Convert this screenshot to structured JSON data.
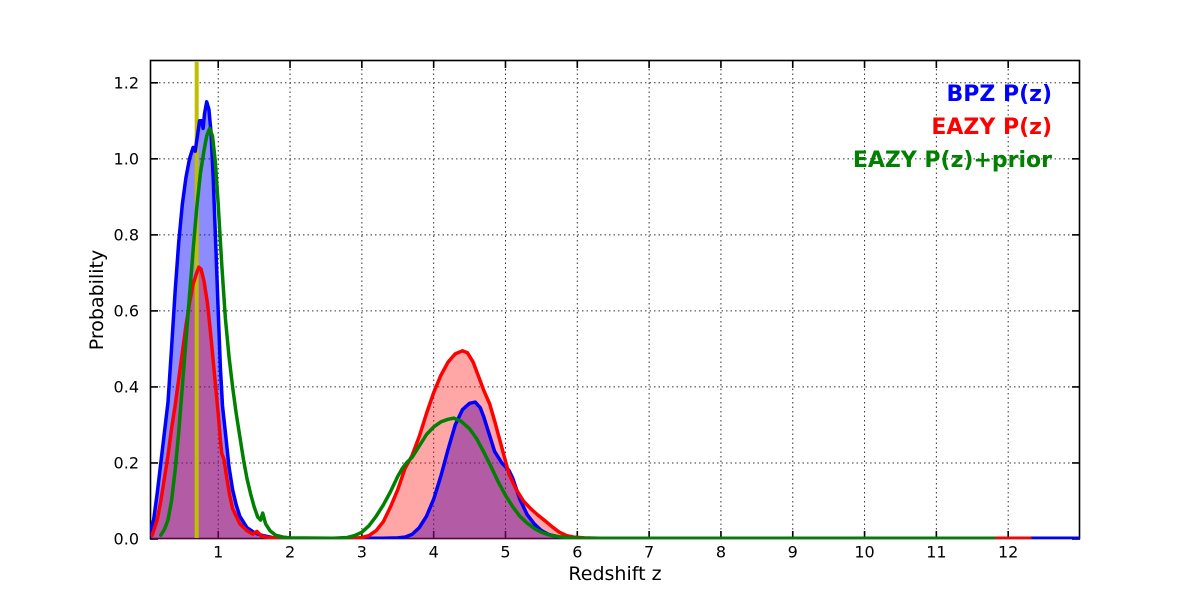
{
  "figure": {
    "background": "#ffffff",
    "frame_color": "#000000",
    "grid_color": "#333333"
  },
  "legend": {
    "items": [
      {
        "label": "BPZ P(z)",
        "color": "#0000ff"
      },
      {
        "label": "EAZY P(z)",
        "color": "#ff0000"
      },
      {
        "label": "EAZY P(z)+prior",
        "color": "#008000"
      }
    ]
  },
  "chart_data": {
    "type": "line",
    "title": "",
    "xlabel": "Redshift z",
    "ylabel": "Probability",
    "xlim": [
      0.05,
      13.0
    ],
    "ylim": [
      0,
      1.26
    ],
    "xticks": [
      1,
      2,
      3,
      4,
      5,
      6,
      7,
      8,
      9,
      10,
      11,
      12
    ],
    "yticks": [
      0.0,
      0.2,
      0.4,
      0.6,
      0.8,
      1.0,
      1.2
    ],
    "grid": true,
    "grid_style": "dotted",
    "legend_position": "upper right",
    "vline": {
      "x": 0.7,
      "color": "#bfbf00",
      "width": 4
    },
    "series": [
      {
        "name": "BPZ P(z)",
        "id": "bpz",
        "color": "#0000ff",
        "fill": "rgba(0,0,255,0.45)",
        "line_width": 3.5,
        "points": [
          [
            0.05,
            0.02
          ],
          [
            0.1,
            0.05
          ],
          [
            0.15,
            0.12
          ],
          [
            0.2,
            0.2
          ],
          [
            0.25,
            0.28
          ],
          [
            0.3,
            0.36
          ],
          [
            0.35,
            0.5
          ],
          [
            0.4,
            0.65
          ],
          [
            0.45,
            0.78
          ],
          [
            0.5,
            0.88
          ],
          [
            0.55,
            0.95
          ],
          [
            0.6,
            1.0
          ],
          [
            0.65,
            1.03
          ],
          [
            0.68,
            1.02
          ],
          [
            0.71,
            1.06
          ],
          [
            0.74,
            1.1
          ],
          [
            0.77,
            1.1
          ],
          [
            0.79,
            1.08
          ],
          [
            0.81,
            1.12
          ],
          [
            0.84,
            1.15
          ],
          [
            0.87,
            1.13
          ],
          [
            0.9,
            1.07
          ],
          [
            0.93,
            0.95
          ],
          [
            0.97,
            0.75
          ],
          [
            1.0,
            0.6
          ],
          [
            1.03,
            0.45
          ],
          [
            1.06,
            0.35
          ],
          [
            1.1,
            0.28
          ],
          [
            1.15,
            0.19
          ],
          [
            1.2,
            0.13
          ],
          [
            1.25,
            0.09
          ],
          [
            1.3,
            0.06
          ],
          [
            1.4,
            0.03
          ],
          [
            1.5,
            0.017
          ],
          [
            1.6,
            0.01
          ],
          [
            1.75,
            0.004
          ],
          [
            1.9,
            0.002
          ],
          [
            2.5,
            0.002
          ],
          [
            3.3,
            0.002
          ],
          [
            3.5,
            0.003
          ],
          [
            3.6,
            0.005
          ],
          [
            3.7,
            0.012
          ],
          [
            3.8,
            0.03
          ],
          [
            3.9,
            0.06
          ],
          [
            4.0,
            0.105
          ],
          [
            4.1,
            0.165
          ],
          [
            4.2,
            0.235
          ],
          [
            4.3,
            0.3
          ],
          [
            4.4,
            0.34
          ],
          [
            4.5,
            0.357
          ],
          [
            4.58,
            0.36
          ],
          [
            4.65,
            0.345
          ],
          [
            4.7,
            0.32
          ],
          [
            4.75,
            0.29
          ],
          [
            4.8,
            0.26
          ],
          [
            4.85,
            0.23
          ],
          [
            4.95,
            0.2
          ],
          [
            5.05,
            0.18
          ],
          [
            5.1,
            0.16
          ],
          [
            5.2,
            0.105
          ],
          [
            5.3,
            0.065
          ],
          [
            5.4,
            0.04
          ],
          [
            5.5,
            0.022
          ],
          [
            5.6,
            0.012
          ],
          [
            5.75,
            0.005
          ],
          [
            5.9,
            0.003
          ],
          [
            6.1,
            0.002
          ],
          [
            13.0,
            0.002
          ]
        ]
      },
      {
        "name": "EAZY P(z)",
        "id": "eazy",
        "color": "#ff0000",
        "fill": "rgba(255,0,0,0.35)",
        "line_width": 3.5,
        "points": [
          [
            0.08,
            0.01
          ],
          [
            0.15,
            0.05
          ],
          [
            0.2,
            0.1
          ],
          [
            0.25,
            0.16
          ],
          [
            0.3,
            0.22
          ],
          [
            0.35,
            0.29
          ],
          [
            0.4,
            0.35
          ],
          [
            0.45,
            0.42
          ],
          [
            0.5,
            0.49
          ],
          [
            0.55,
            0.56
          ],
          [
            0.6,
            0.62
          ],
          [
            0.65,
            0.67
          ],
          [
            0.7,
            0.7
          ],
          [
            0.73,
            0.715
          ],
          [
            0.76,
            0.71
          ],
          [
            0.8,
            0.68
          ],
          [
            0.85,
            0.62
          ],
          [
            0.9,
            0.53
          ],
          [
            0.95,
            0.43
          ],
          [
            1.0,
            0.33
          ],
          [
            1.03,
            0.26
          ],
          [
            1.05,
            0.225
          ],
          [
            1.08,
            0.21
          ],
          [
            1.12,
            0.16
          ],
          [
            1.16,
            0.115
          ],
          [
            1.2,
            0.08
          ],
          [
            1.3,
            0.04
          ],
          [
            1.4,
            0.022
          ],
          [
            1.48,
            0.013
          ],
          [
            1.54,
            0.02
          ],
          [
            1.6,
            0.008
          ],
          [
            1.7,
            0.004
          ],
          [
            1.85,
            0.002
          ],
          [
            2.5,
            0.002
          ],
          [
            2.9,
            0.002
          ],
          [
            3.0,
            0.004
          ],
          [
            3.1,
            0.009
          ],
          [
            3.2,
            0.022
          ],
          [
            3.3,
            0.046
          ],
          [
            3.4,
            0.085
          ],
          [
            3.5,
            0.13
          ],
          [
            3.6,
            0.185
          ],
          [
            3.7,
            0.22
          ],
          [
            3.8,
            0.27
          ],
          [
            3.9,
            0.33
          ],
          [
            4.0,
            0.385
          ],
          [
            4.1,
            0.43
          ],
          [
            4.2,
            0.465
          ],
          [
            4.3,
            0.487
          ],
          [
            4.4,
            0.495
          ],
          [
            4.47,
            0.49
          ],
          [
            4.55,
            0.465
          ],
          [
            4.6,
            0.44
          ],
          [
            4.7,
            0.39
          ],
          [
            4.78,
            0.355
          ],
          [
            4.85,
            0.31
          ],
          [
            4.95,
            0.24
          ],
          [
            5.05,
            0.17
          ],
          [
            5.15,
            0.13
          ],
          [
            5.25,
            0.1
          ],
          [
            5.35,
            0.08
          ],
          [
            5.45,
            0.063
          ],
          [
            5.55,
            0.048
          ],
          [
            5.65,
            0.032
          ],
          [
            5.75,
            0.018
          ],
          [
            5.85,
            0.009
          ],
          [
            5.95,
            0.005
          ],
          [
            6.1,
            0.003
          ],
          [
            6.3,
            0.002
          ],
          [
            12.3,
            0.002
          ]
        ]
      },
      {
        "name": "EAZY P(z)+prior",
        "id": "eazy-prior",
        "color": "#008000",
        "fill": null,
        "line_width": 3.5,
        "points": [
          [
            0.2,
            0.01
          ],
          [
            0.25,
            0.025
          ],
          [
            0.3,
            0.05
          ],
          [
            0.35,
            0.1
          ],
          [
            0.4,
            0.18
          ],
          [
            0.45,
            0.28
          ],
          [
            0.5,
            0.4
          ],
          [
            0.55,
            0.52
          ],
          [
            0.6,
            0.64
          ],
          [
            0.65,
            0.76
          ],
          [
            0.7,
            0.87
          ],
          [
            0.75,
            0.96
          ],
          [
            0.8,
            1.02
          ],
          [
            0.84,
            1.06
          ],
          [
            0.88,
            1.08
          ],
          [
            0.92,
            1.06
          ],
          [
            0.96,
            0.99
          ],
          [
            1.0,
            0.88
          ],
          [
            1.05,
            0.72
          ],
          [
            1.1,
            0.58
          ],
          [
            1.15,
            0.48
          ],
          [
            1.2,
            0.4
          ],
          [
            1.25,
            0.33
          ],
          [
            1.3,
            0.27
          ],
          [
            1.35,
            0.21
          ],
          [
            1.4,
            0.16
          ],
          [
            1.45,
            0.12
          ],
          [
            1.5,
            0.085
          ],
          [
            1.55,
            0.058
          ],
          [
            1.59,
            0.05
          ],
          [
            1.62,
            0.068
          ],
          [
            1.66,
            0.04
          ],
          [
            1.72,
            0.022
          ],
          [
            1.8,
            0.01
          ],
          [
            1.9,
            0.005
          ],
          [
            2.0,
            0.003
          ],
          [
            2.6,
            0.002
          ],
          [
            2.8,
            0.004
          ],
          [
            2.9,
            0.009
          ],
          [
            3.0,
            0.018
          ],
          [
            3.1,
            0.035
          ],
          [
            3.2,
            0.06
          ],
          [
            3.3,
            0.09
          ],
          [
            3.4,
            0.125
          ],
          [
            3.5,
            0.165
          ],
          [
            3.56,
            0.185
          ],
          [
            3.62,
            0.2
          ],
          [
            3.7,
            0.215
          ],
          [
            3.8,
            0.245
          ],
          [
            3.9,
            0.275
          ],
          [
            4.0,
            0.295
          ],
          [
            4.1,
            0.308
          ],
          [
            4.2,
            0.315
          ],
          [
            4.28,
            0.318
          ],
          [
            4.38,
            0.31
          ],
          [
            4.5,
            0.29
          ],
          [
            4.6,
            0.263
          ],
          [
            4.7,
            0.228
          ],
          [
            4.8,
            0.19
          ],
          [
            4.9,
            0.15
          ],
          [
            5.0,
            0.115
          ],
          [
            5.1,
            0.085
          ],
          [
            5.2,
            0.06
          ],
          [
            5.3,
            0.042
          ],
          [
            5.4,
            0.028
          ],
          [
            5.5,
            0.018
          ],
          [
            5.6,
            0.011
          ],
          [
            5.75,
            0.006
          ],
          [
            5.9,
            0.003
          ],
          [
            6.1,
            0.002
          ],
          [
            11.8,
            0.002
          ]
        ]
      }
    ]
  }
}
